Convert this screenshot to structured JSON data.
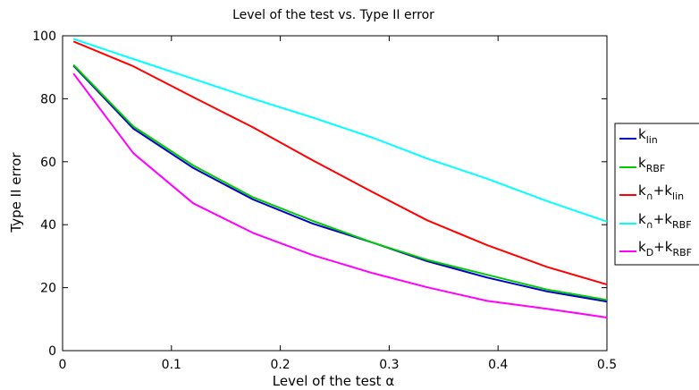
{
  "chart_data": {
    "type": "line",
    "title": "Level of the test vs. Type II error",
    "xlabel": "Level of the test α",
    "ylabel": "Type II error",
    "xlim": [
      0,
      0.5
    ],
    "ylim": [
      0,
      100
    ],
    "x_ticks": [
      "0",
      "0.1",
      "0.2",
      "0.3",
      "0.4",
      "0.5"
    ],
    "y_ticks": [
      "0",
      "20",
      "40",
      "60",
      "80",
      "100"
    ],
    "grid": false,
    "legend_position": "right",
    "x": [
      0.01,
      0.065,
      0.12,
      0.175,
      0.23,
      0.285,
      0.335,
      0.39,
      0.445,
      0.5
    ],
    "series": [
      {
        "key": "k_lin",
        "color": "#0000cc",
        "label": [
          {
            "t": "k"
          },
          {
            "t": "lin",
            "sub": true
          }
        ],
        "values": [
          90.5,
          70.5,
          58,
          48,
          40.3,
          34.3,
          28.4,
          23.2,
          18.8,
          15.6
        ]
      },
      {
        "key": "k_RBF",
        "color": "#00cc00",
        "label": [
          {
            "t": "k"
          },
          {
            "t": "RBF",
            "sub": true
          }
        ],
        "values": [
          90.8,
          71.2,
          58.8,
          48.7,
          41.2,
          34.3,
          28.8,
          24.1,
          19.4,
          16.1
        ]
      },
      {
        "key": "k_cap_k_lin",
        "color": "#ff0000",
        "label": [
          {
            "t": "k"
          },
          {
            "t": "∩",
            "sub": true
          },
          {
            "t": "+k"
          },
          {
            "t": "lin",
            "sub": true
          }
        ],
        "values": [
          98.2,
          90.3,
          80.5,
          70.9,
          60.4,
          50.3,
          41.4,
          33.5,
          26.6,
          21
        ]
      },
      {
        "key": "k_cap_k_RBF",
        "color": "#00ffff",
        "label": [
          {
            "t": "k"
          },
          {
            "t": "∩",
            "sub": true
          },
          {
            "t": "+k"
          },
          {
            "t": "RBF",
            "sub": true
          }
        ],
        "values": [
          99,
          92.6,
          86.3,
          80,
          74,
          67.6,
          61,
          54.6,
          47.5,
          41
        ]
      },
      {
        "key": "k_D_k_RBF",
        "color": "#ff00ff",
        "label": [
          {
            "t": "k"
          },
          {
            "t": "D",
            "sub": true
          },
          {
            "t": "+k"
          },
          {
            "t": "RBF",
            "sub": true
          }
        ],
        "values": [
          88,
          62.7,
          46.8,
          37.4,
          30.3,
          24.6,
          20.1,
          15.8,
          13.3,
          10.5
        ]
      }
    ]
  }
}
